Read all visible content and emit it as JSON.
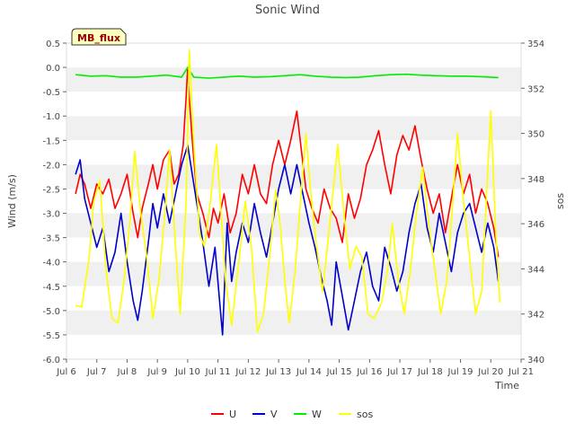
{
  "chart_data": {
    "type": "line",
    "title": "Sonic Wind",
    "xlabel": "Time",
    "ylabel_left": "Wind (m/s)",
    "ylabel_right": "sos",
    "annotation": "MB_flux",
    "x_ticks": [
      "Jul 6",
      "Jul 7",
      "Jul 8",
      "Jul 9",
      "Jul 10",
      "Jul 11",
      "Jul 12",
      "Jul 13",
      "Jul 14",
      "Jul 15",
      "Jul 16",
      "Jul 17",
      "Jul 18",
      "Jul 19",
      "Jul 20",
      "Jul 21"
    ],
    "x_range": [
      6,
      21
    ],
    "y_left_range": [
      -6.0,
      0.5
    ],
    "y_left_ticks": [
      "0.5",
      "0.0",
      "-0.5",
      "-1.0",
      "-1.5",
      "-2.0",
      "-2.5",
      "-3.0",
      "-3.5",
      "-4.0",
      "-4.5",
      "-5.0",
      "-5.5",
      "-6.0"
    ],
    "y_left_tick_values": [
      0.5,
      0.0,
      -0.5,
      -1.0,
      -1.5,
      -2.0,
      -2.5,
      -3.0,
      -3.5,
      -4.0,
      -4.5,
      -5.0,
      -5.5,
      -6.0
    ],
    "y_right_range": [
      340,
      354
    ],
    "y_right_ticks": [
      "354",
      "352",
      "350",
      "348",
      "346",
      "344",
      "342",
      "340"
    ],
    "y_right_tick_values": [
      354,
      352,
      350,
      348,
      346,
      344,
      342,
      340
    ],
    "series": [
      {
        "name": "U",
        "color": "#ff0000",
        "axis": "left",
        "points": [
          [
            6.3,
            -2.6
          ],
          [
            6.45,
            -2.2
          ],
          [
            6.6,
            -2.4
          ],
          [
            6.8,
            -2.9
          ],
          [
            7.0,
            -2.4
          ],
          [
            7.2,
            -2.6
          ],
          [
            7.4,
            -2.3
          ],
          [
            7.6,
            -2.9
          ],
          [
            7.8,
            -2.6
          ],
          [
            8.0,
            -2.2
          ],
          [
            8.2,
            -3.0
          ],
          [
            8.35,
            -3.5
          ],
          [
            8.5,
            -2.9
          ],
          [
            8.7,
            -2.4
          ],
          [
            8.85,
            -2.0
          ],
          [
            9.0,
            -2.5
          ],
          [
            9.2,
            -1.9
          ],
          [
            9.4,
            -1.7
          ],
          [
            9.55,
            -2.4
          ],
          [
            9.7,
            -2.2
          ],
          [
            9.85,
            -1.6
          ],
          [
            9.95,
            -0.6
          ],
          [
            10.0,
            0.0
          ],
          [
            10.05,
            -0.6
          ],
          [
            10.15,
            -1.5
          ],
          [
            10.3,
            -2.6
          ],
          [
            10.5,
            -3.0
          ],
          [
            10.7,
            -3.5
          ],
          [
            10.85,
            -2.9
          ],
          [
            11.0,
            -3.2
          ],
          [
            11.2,
            -2.6
          ],
          [
            11.4,
            -3.4
          ],
          [
            11.6,
            -3.0
          ],
          [
            11.8,
            -2.2
          ],
          [
            12.0,
            -2.6
          ],
          [
            12.2,
            -2.0
          ],
          [
            12.4,
            -2.6
          ],
          [
            12.6,
            -2.8
          ],
          [
            12.8,
            -2.0
          ],
          [
            13.0,
            -1.5
          ],
          [
            13.2,
            -2.0
          ],
          [
            13.4,
            -1.5
          ],
          [
            13.6,
            -0.9
          ],
          [
            13.75,
            -1.7
          ],
          [
            13.9,
            -2.5
          ],
          [
            14.1,
            -2.9
          ],
          [
            14.3,
            -3.2
          ],
          [
            14.5,
            -2.5
          ],
          [
            14.7,
            -2.9
          ],
          [
            14.9,
            -3.1
          ],
          [
            15.1,
            -3.6
          ],
          [
            15.3,
            -2.6
          ],
          [
            15.5,
            -3.1
          ],
          [
            15.7,
            -2.7
          ],
          [
            15.9,
            -2.0
          ],
          [
            16.1,
            -1.7
          ],
          [
            16.3,
            -1.3
          ],
          [
            16.5,
            -2.0
          ],
          [
            16.7,
            -2.6
          ],
          [
            16.9,
            -1.8
          ],
          [
            17.1,
            -1.4
          ],
          [
            17.3,
            -1.7
          ],
          [
            17.5,
            -1.2
          ],
          [
            17.7,
            -1.9
          ],
          [
            17.9,
            -2.5
          ],
          [
            18.1,
            -3.0
          ],
          [
            18.3,
            -2.6
          ],
          [
            18.5,
            -3.4
          ],
          [
            18.7,
            -2.7
          ],
          [
            18.9,
            -2.0
          ],
          [
            19.1,
            -2.6
          ],
          [
            19.3,
            -2.2
          ],
          [
            19.5,
            -3.0
          ],
          [
            19.7,
            -2.5
          ],
          [
            19.9,
            -2.8
          ],
          [
            20.1,
            -3.3
          ],
          [
            20.25,
            -3.9
          ]
        ]
      },
      {
        "name": "V",
        "color": "#0000cc",
        "axis": "left",
        "points": [
          [
            6.3,
            -2.2
          ],
          [
            6.45,
            -1.9
          ],
          [
            6.6,
            -2.7
          ],
          [
            6.8,
            -3.2
          ],
          [
            7.0,
            -3.7
          ],
          [
            7.2,
            -3.3
          ],
          [
            7.4,
            -4.2
          ],
          [
            7.6,
            -3.8
          ],
          [
            7.8,
            -3.0
          ],
          [
            8.0,
            -4.0
          ],
          [
            8.2,
            -4.8
          ],
          [
            8.35,
            -5.2
          ],
          [
            8.5,
            -4.6
          ],
          [
            8.7,
            -3.6
          ],
          [
            8.85,
            -2.8
          ],
          [
            9.0,
            -3.3
          ],
          [
            9.2,
            -2.6
          ],
          [
            9.4,
            -3.2
          ],
          [
            9.6,
            -2.6
          ],
          [
            9.8,
            -2.0
          ],
          [
            10.0,
            -1.6
          ],
          [
            10.15,
            -2.2
          ],
          [
            10.3,
            -2.8
          ],
          [
            10.5,
            -3.6
          ],
          [
            10.7,
            -4.5
          ],
          [
            10.9,
            -3.7
          ],
          [
            11.05,
            -4.8
          ],
          [
            11.15,
            -5.5
          ],
          [
            11.3,
            -3.2
          ],
          [
            11.45,
            -4.4
          ],
          [
            11.6,
            -3.8
          ],
          [
            11.8,
            -3.2
          ],
          [
            12.0,
            -3.6
          ],
          [
            12.2,
            -2.8
          ],
          [
            12.4,
            -3.4
          ],
          [
            12.6,
            -3.9
          ],
          [
            12.8,
            -3.2
          ],
          [
            13.0,
            -2.5
          ],
          [
            13.2,
            -2.0
          ],
          [
            13.4,
            -2.6
          ],
          [
            13.6,
            -2.0
          ],
          [
            13.8,
            -2.6
          ],
          [
            14.0,
            -3.2
          ],
          [
            14.2,
            -3.7
          ],
          [
            14.4,
            -4.3
          ],
          [
            14.6,
            -4.8
          ],
          [
            14.75,
            -5.3
          ],
          [
            14.9,
            -4.0
          ],
          [
            15.1,
            -4.7
          ],
          [
            15.3,
            -5.4
          ],
          [
            15.5,
            -4.8
          ],
          [
            15.7,
            -4.2
          ],
          [
            15.9,
            -3.8
          ],
          [
            16.1,
            -4.5
          ],
          [
            16.3,
            -4.8
          ],
          [
            16.5,
            -3.7
          ],
          [
            16.7,
            -4.1
          ],
          [
            16.9,
            -4.6
          ],
          [
            17.1,
            -4.2
          ],
          [
            17.3,
            -3.4
          ],
          [
            17.5,
            -2.8
          ],
          [
            17.7,
            -2.4
          ],
          [
            17.9,
            -3.3
          ],
          [
            18.1,
            -3.8
          ],
          [
            18.3,
            -3.0
          ],
          [
            18.5,
            -3.6
          ],
          [
            18.7,
            -4.2
          ],
          [
            18.9,
            -3.4
          ],
          [
            19.1,
            -3.0
          ],
          [
            19.3,
            -2.8
          ],
          [
            19.5,
            -3.3
          ],
          [
            19.7,
            -3.8
          ],
          [
            19.9,
            -3.2
          ],
          [
            20.1,
            -3.7
          ],
          [
            20.25,
            -4.4
          ]
        ]
      },
      {
        "name": "W",
        "color": "#00ee00",
        "axis": "left",
        "points": [
          [
            6.3,
            -0.15
          ],
          [
            6.8,
            -0.18
          ],
          [
            7.3,
            -0.17
          ],
          [
            7.8,
            -0.2
          ],
          [
            8.3,
            -0.2
          ],
          [
            8.8,
            -0.18
          ],
          [
            9.3,
            -0.16
          ],
          [
            9.8,
            -0.2
          ],
          [
            10.0,
            0.0
          ],
          [
            10.2,
            -0.2
          ],
          [
            10.7,
            -0.22
          ],
          [
            11.2,
            -0.2
          ],
          [
            11.7,
            -0.18
          ],
          [
            12.2,
            -0.2
          ],
          [
            12.7,
            -0.19
          ],
          [
            13.2,
            -0.17
          ],
          [
            13.7,
            -0.15
          ],
          [
            14.2,
            -0.18
          ],
          [
            14.7,
            -0.2
          ],
          [
            15.2,
            -0.21
          ],
          [
            15.7,
            -0.2
          ],
          [
            16.2,
            -0.17
          ],
          [
            16.7,
            -0.15
          ],
          [
            17.2,
            -0.14
          ],
          [
            17.7,
            -0.16
          ],
          [
            18.2,
            -0.17
          ],
          [
            18.7,
            -0.18
          ],
          [
            19.2,
            -0.18
          ],
          [
            19.7,
            -0.19
          ],
          [
            20.25,
            -0.21
          ]
        ]
      },
      {
        "name": "sos",
        "color": "#ffff00",
        "axis": "right",
        "points": [
          [
            6.3,
            342.4
          ],
          [
            6.5,
            342.3
          ],
          [
            6.75,
            344.5
          ],
          [
            6.9,
            347.0
          ],
          [
            7.1,
            347.9
          ],
          [
            7.3,
            344.0
          ],
          [
            7.5,
            341.8
          ],
          [
            7.7,
            341.6
          ],
          [
            7.9,
            343.5
          ],
          [
            8.1,
            346.2
          ],
          [
            8.25,
            349.2
          ],
          [
            8.45,
            346.5
          ],
          [
            8.65,
            344.5
          ],
          [
            8.85,
            341.8
          ],
          [
            9.05,
            343.5
          ],
          [
            9.25,
            346.5
          ],
          [
            9.4,
            349.3
          ],
          [
            9.6,
            345.0
          ],
          [
            9.75,
            342.0
          ],
          [
            9.95,
            347.0
          ],
          [
            10.05,
            353.7
          ],
          [
            10.2,
            349.5
          ],
          [
            10.4,
            345.5
          ],
          [
            10.55,
            345.0
          ],
          [
            10.75,
            347.0
          ],
          [
            10.95,
            349.5
          ],
          [
            11.1,
            346.5
          ],
          [
            11.25,
            343.5
          ],
          [
            11.45,
            341.5
          ],
          [
            11.7,
            344.5
          ],
          [
            11.9,
            347.0
          ],
          [
            12.1,
            345.0
          ],
          [
            12.3,
            341.2
          ],
          [
            12.5,
            342.0
          ],
          [
            12.7,
            344.5
          ],
          [
            12.9,
            347.5
          ],
          [
            13.05,
            346.0
          ],
          [
            13.2,
            343.5
          ],
          [
            13.35,
            341.6
          ],
          [
            13.55,
            344.0
          ],
          [
            13.75,
            347.5
          ],
          [
            13.9,
            350.0
          ],
          [
            14.05,
            347.5
          ],
          [
            14.25,
            345.0
          ],
          [
            14.45,
            343.0
          ],
          [
            14.65,
            345.5
          ],
          [
            14.8,
            347.5
          ],
          [
            14.95,
            349.5
          ],
          [
            15.15,
            346.5
          ],
          [
            15.35,
            344.0
          ],
          [
            15.55,
            345.0
          ],
          [
            15.75,
            344.5
          ],
          [
            15.95,
            342.0
          ],
          [
            16.15,
            341.8
          ],
          [
            16.4,
            342.5
          ],
          [
            16.6,
            344.0
          ],
          [
            16.75,
            346.0
          ],
          [
            16.95,
            343.5
          ],
          [
            17.15,
            342.0
          ],
          [
            17.35,
            344.0
          ],
          [
            17.55,
            346.5
          ],
          [
            17.75,
            348.5
          ],
          [
            17.95,
            346.0
          ],
          [
            18.15,
            344.0
          ],
          [
            18.35,
            342.0
          ],
          [
            18.55,
            343.5
          ],
          [
            18.75,
            347.0
          ],
          [
            18.9,
            350.0
          ],
          [
            19.1,
            347.0
          ],
          [
            19.3,
            344.5
          ],
          [
            19.5,
            342.0
          ],
          [
            19.7,
            343.0
          ],
          [
            19.85,
            347.0
          ],
          [
            20.0,
            351.0
          ],
          [
            20.15,
            346.0
          ],
          [
            20.3,
            342.5
          ]
        ]
      }
    ],
    "legend": [
      "U",
      "V",
      "W",
      "sos"
    ],
    "legend_position": "bottom-center",
    "grid": "horizontal bands"
  }
}
